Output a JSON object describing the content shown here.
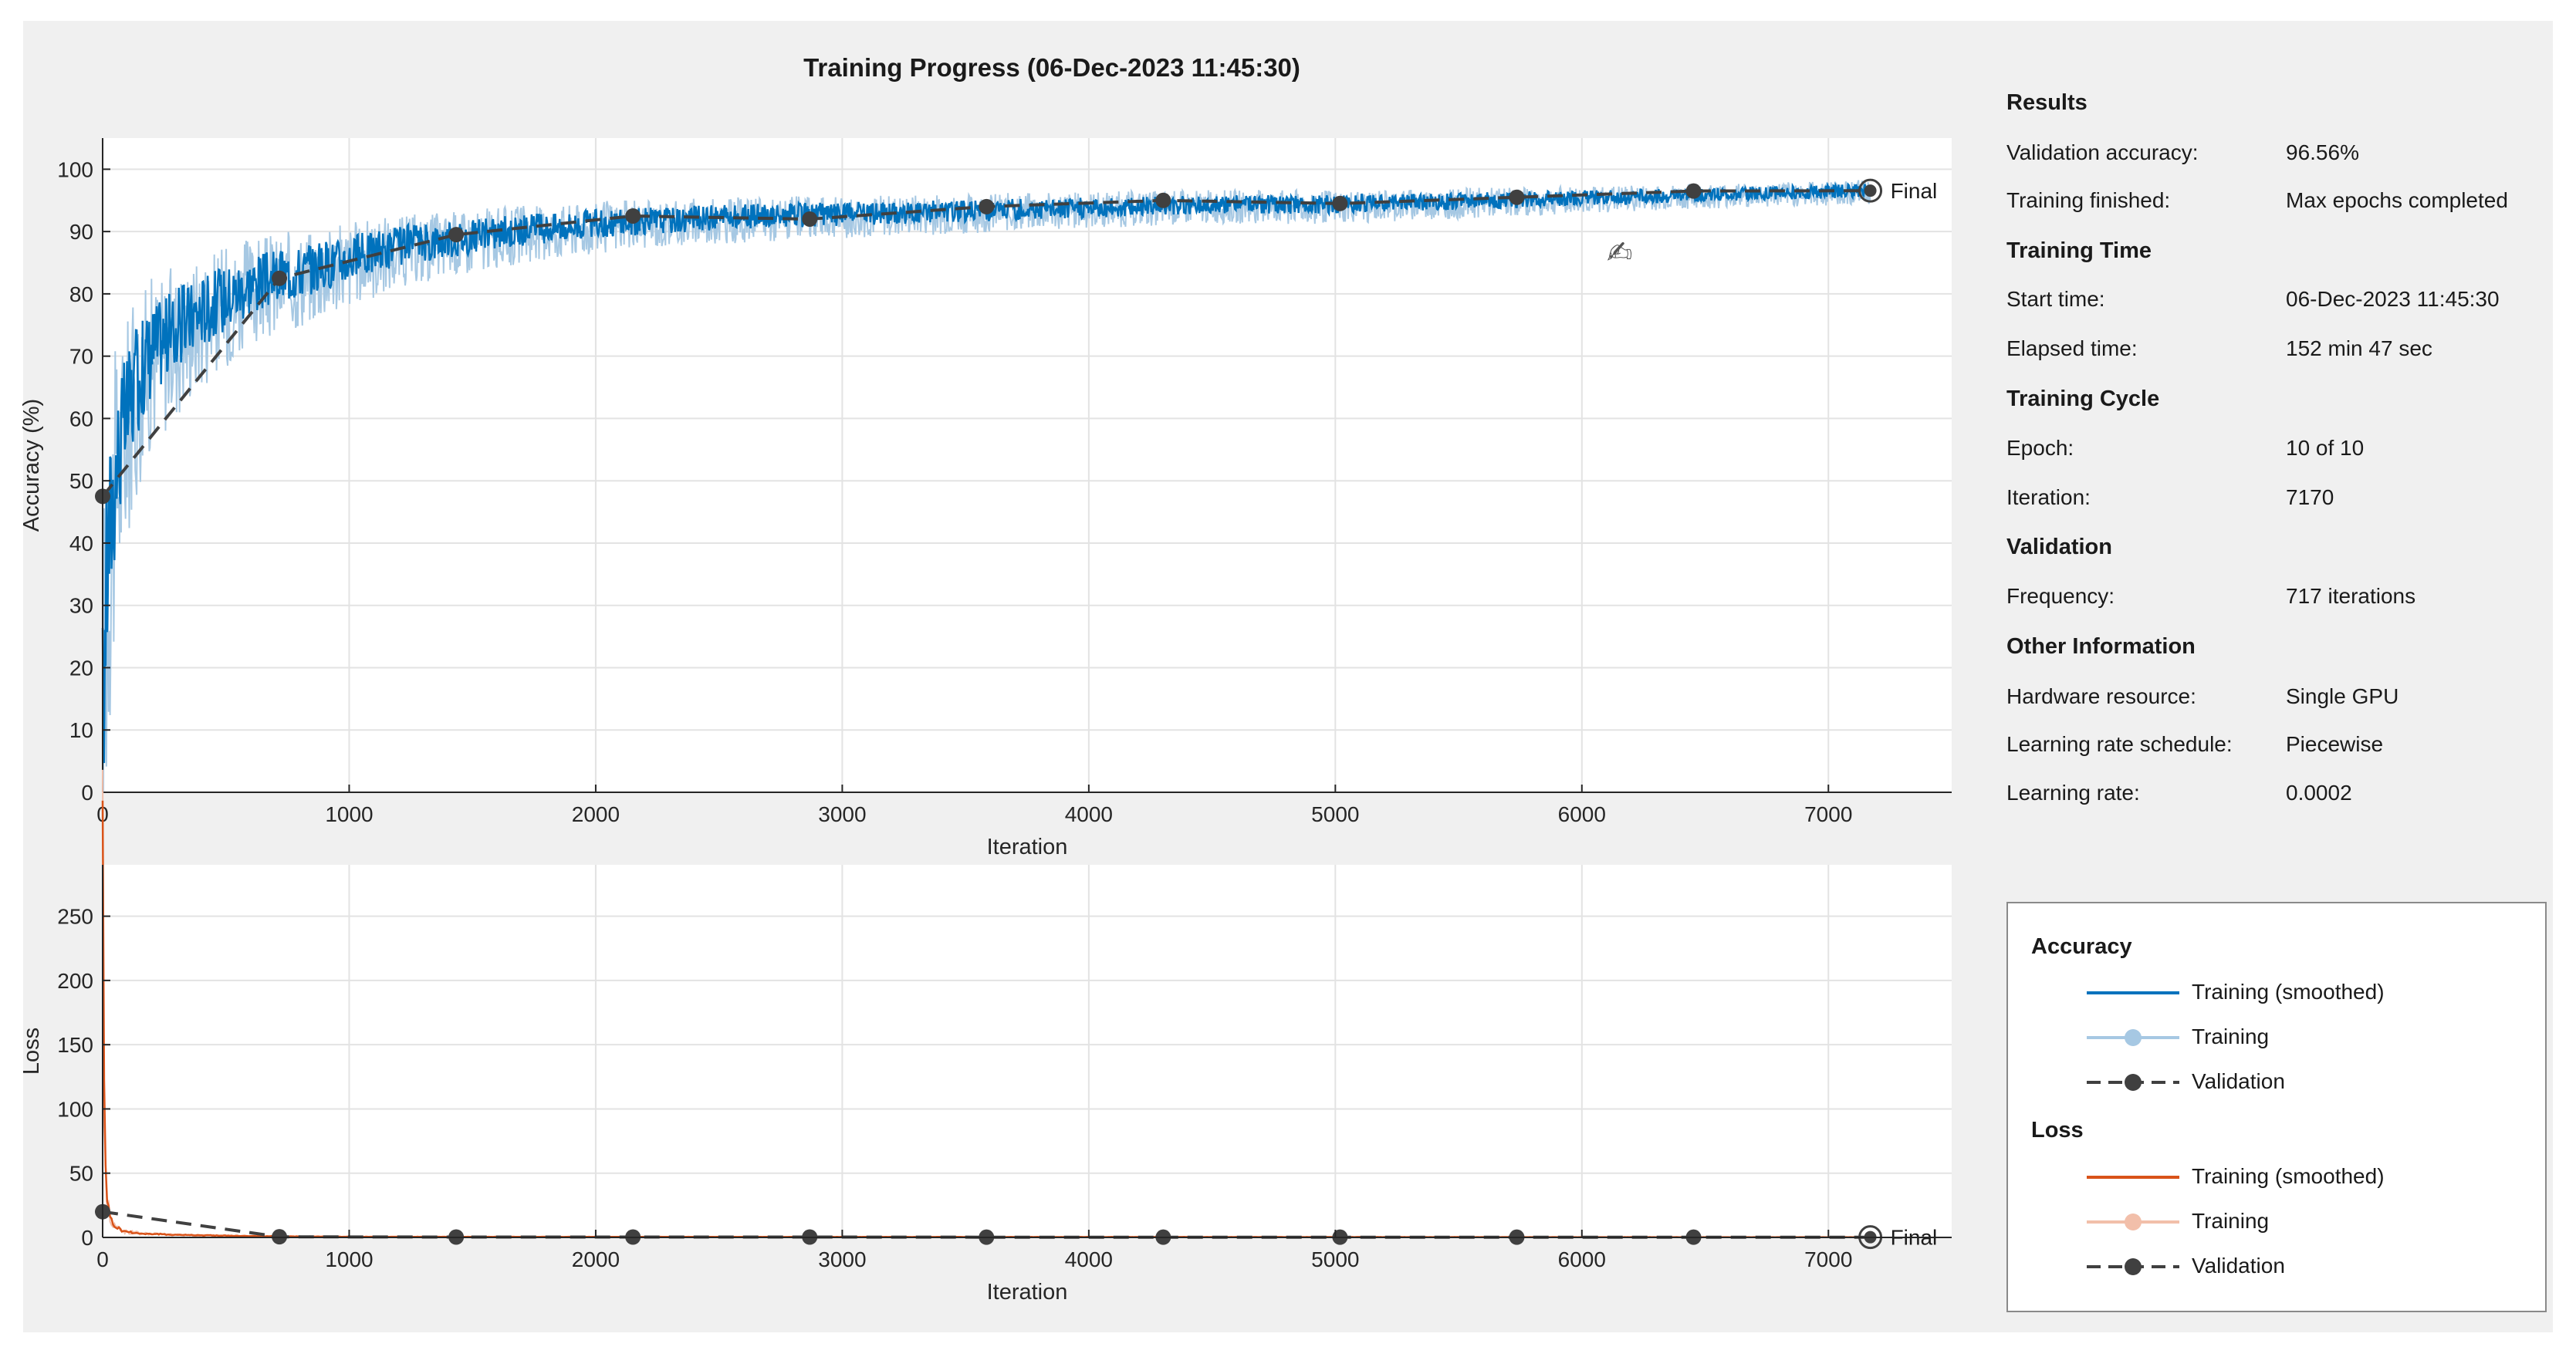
{
  "title": "Training Progress (06-Dec-2023 11:45:30)",
  "chart_data": [
    {
      "type": "line",
      "name": "accuracy-plot",
      "xlabel": "Iteration",
      "ylabel": "Accuracy (%)",
      "xlim": [
        0,
        7500
      ],
      "ylim": [
        0,
        105
      ],
      "xticks": [
        0,
        1000,
        2000,
        3000,
        4000,
        5000,
        6000,
        7000
      ],
      "yticks": [
        0,
        10,
        20,
        30,
        40,
        50,
        60,
        70,
        80,
        90,
        100
      ],
      "grid": true,
      "final_label": "Final",
      "colors": {
        "smoothed": "#0072BD",
        "raw": "#A6C8E3",
        "validation": "#404040"
      },
      "smoothed_trend": {
        "x": [
          0,
          5,
          10,
          20,
          40,
          60,
          100,
          150,
          200,
          300,
          400,
          500,
          600,
          700,
          800,
          1000,
          1200,
          1400,
          1700,
          2000,
          2500,
          3000,
          3500,
          4000,
          4500,
          5000,
          5500,
          6000,
          6500,
          7000,
          7170
        ],
        "y": [
          8,
          20,
          30,
          40,
          48,
          55,
          62,
          68,
          72,
          75,
          78,
          80,
          82,
          83,
          84,
          86,
          88,
          89,
          90.5,
          91.5,
          92.5,
          93,
          93.5,
          94,
          94.5,
          94.5,
          95,
          95.5,
          96,
          96.5,
          96.8
        ]
      },
      "validation": {
        "x": [
          0,
          717,
          1434,
          2151,
          2868,
          3585,
          4302,
          5019,
          5736,
          6453,
          7170
        ],
        "y": [
          47.5,
          82.5,
          89.5,
          92.5,
          92,
          94,
          95,
          94.5,
          95.5,
          96.5,
          96.56
        ]
      }
    },
    {
      "type": "line",
      "name": "loss-plot",
      "xlabel": "Iteration",
      "ylabel": "Loss",
      "xlim": [
        0,
        7500
      ],
      "ylim": [
        0,
        290
      ],
      "xticks": [
        0,
        1000,
        2000,
        3000,
        4000,
        5000,
        6000,
        7000
      ],
      "yticks": [
        0,
        50,
        100,
        150,
        200,
        250
      ],
      "grid": true,
      "final_label": "Final",
      "colors": {
        "smoothed": "#D95319",
        "raw": "#F2BFAA",
        "validation": "#404040"
      },
      "smoothed_trend": {
        "x": [
          0,
          3,
          6,
          10,
          20,
          40,
          80,
          150,
          300,
          600,
          1000,
          7170
        ],
        "y": [
          285,
          200,
          120,
          60,
          25,
          10,
          5,
          3,
          2,
          1,
          0.5,
          0.2
        ]
      },
      "validation": {
        "x": [
          0,
          717,
          1434,
          2151,
          2868,
          3585,
          4302,
          5019,
          5736,
          6453,
          7170
        ],
        "y": [
          20,
          0.5,
          0.3,
          0.3,
          0.3,
          0.2,
          0.2,
          0.2,
          0.2,
          0.2,
          0.2
        ]
      }
    }
  ],
  "info": {
    "results_title": "Results",
    "validation_accuracy_label": "Validation accuracy:",
    "validation_accuracy": "96.56%",
    "training_finished_label": "Training finished:",
    "training_finished": "Max epochs completed",
    "training_time_title": "Training Time",
    "start_time_label": "Start time:",
    "start_time": "06-Dec-2023 11:45:30",
    "elapsed_time_label": "Elapsed time:",
    "elapsed_time": "152 min 47 sec",
    "training_cycle_title": "Training Cycle",
    "epoch_label": "Epoch:",
    "epoch": "10 of 10",
    "iteration_label": "Iteration:",
    "iteration": "7170",
    "validation_title": "Validation",
    "frequency_label": "Frequency:",
    "frequency": "717 iterations",
    "other_title": "Other Information",
    "hardware_label": "Hardware resource:",
    "hardware": "Single GPU",
    "lr_schedule_label": "Learning rate schedule:",
    "lr_schedule": "Piecewise",
    "lr_label": "Learning rate:",
    "lr": "0.0002"
  },
  "legend": {
    "accuracy_title": "Accuracy",
    "loss_title": "Loss",
    "smoothed": "Training (smoothed)",
    "training": "Training",
    "validation": "Validation"
  },
  "icons": {
    "edit": "edit-annotation-icon"
  }
}
